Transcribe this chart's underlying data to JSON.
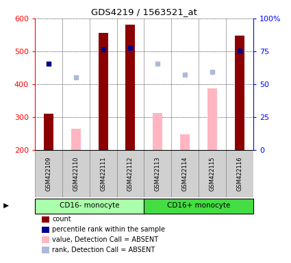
{
  "title": "GDS4219 / 1563521_at",
  "samples": [
    "GSM422109",
    "GSM422110",
    "GSM422111",
    "GSM422112",
    "GSM422113",
    "GSM422114",
    "GSM422115",
    "GSM422116"
  ],
  "count_values": [
    310,
    null,
    557,
    580,
    null,
    null,
    null,
    547
  ],
  "count_absent_values": [
    null,
    265,
    null,
    null,
    313,
    248,
    387,
    null
  ],
  "percentile_values": [
    462,
    null,
    507,
    510,
    null,
    null,
    null,
    503
  ],
  "rank_absent_values": [
    null,
    420,
    null,
    null,
    462,
    430,
    438,
    null
  ],
  "ylim_left": [
    200,
    600
  ],
  "ylim_right": [
    0,
    100
  ],
  "yticks_left": [
    200,
    300,
    400,
    500,
    600
  ],
  "yticks_right": [
    0,
    25,
    50,
    75,
    100
  ],
  "ytick_right_labels": [
    "0",
    "25",
    "50",
    "75",
    "100%"
  ],
  "groups": [
    {
      "label": "CD16- monocyte",
      "start": 0,
      "end": 3,
      "color": "#99ee99"
    },
    {
      "label": "CD16+ monocyte",
      "start": 4,
      "end": 7,
      "color": "#44dd44"
    }
  ],
  "bar_color_count": "#8B0000",
  "bar_color_absent": "#FFB6C1",
  "dot_color_percentile": "#00008B",
  "dot_color_rank": "#b0b8d8",
  "bar_width": 0.35,
  "sample_box_color": "#d0d0d0",
  "legend": [
    {
      "label": "count",
      "color": "#8B0000"
    },
    {
      "label": "percentile rank within the sample",
      "color": "#00008B"
    },
    {
      "label": "value, Detection Call = ABSENT",
      "color": "#FFB6C1"
    },
    {
      "label": "rank, Detection Call = ABSENT",
      "color": "#b0b8d8"
    }
  ]
}
